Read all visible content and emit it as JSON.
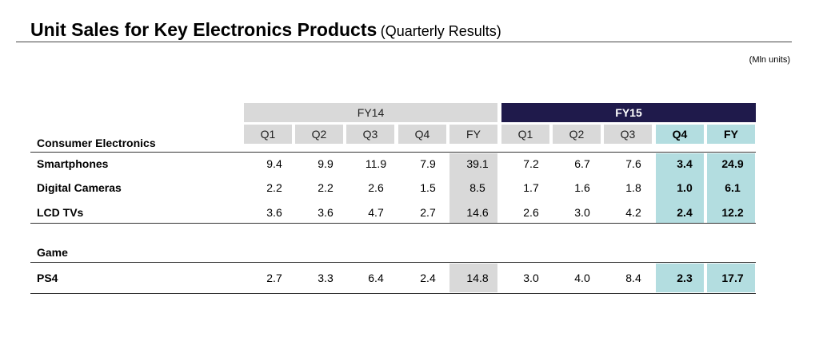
{
  "title": {
    "main": "Unit Sales for Key Electronics Products",
    "sub": "(Quarterly Results)"
  },
  "units": "(Mln units)",
  "groups": {
    "fy14": "FY14",
    "fy15": "FY15"
  },
  "columns": [
    "Q1",
    "Q2",
    "Q3",
    "Q4",
    "FY",
    "Q1",
    "Q2",
    "Q3",
    "Q4",
    "FY"
  ],
  "sections": {
    "consumer": "Consumer Electronics",
    "game": "Game"
  },
  "rows": [
    {
      "label": "Smartphones",
      "values": [
        "9.4",
        "9.9",
        "11.9",
        "7.9",
        "39.1",
        "7.2",
        "6.7",
        "7.6",
        "3.4",
        "24.9"
      ]
    },
    {
      "label": "Digital Cameras",
      "values": [
        "2.2",
        "2.2",
        "2.6",
        "1.5",
        "8.5",
        "1.7",
        "1.6",
        "1.8",
        "1.0",
        "6.1"
      ]
    },
    {
      "label": "LCD TVs",
      "values": [
        "3.6",
        "3.6",
        "4.7",
        "2.7",
        "14.6",
        "2.6",
        "3.0",
        "4.2",
        "2.4",
        "12.2"
      ]
    },
    {
      "label": "PS4",
      "values": [
        "2.7",
        "3.3",
        "6.4",
        "2.4",
        "14.8",
        "3.0",
        "4.0",
        "8.4",
        "2.3",
        "17.7"
      ]
    }
  ],
  "colors": {
    "fy14_header": "#d9d9d9",
    "fy15_header": "#1f1a4b",
    "highlight": "#b3dde0"
  }
}
